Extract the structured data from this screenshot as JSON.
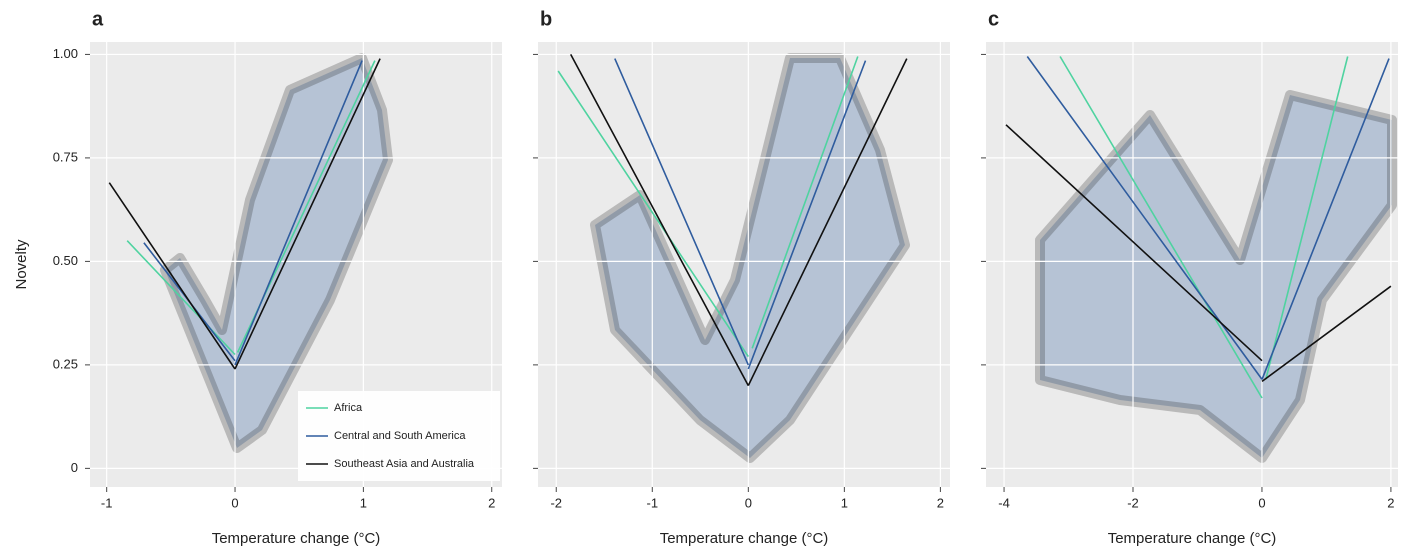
{
  "chart_data": [
    {
      "type": "line",
      "title": "a",
      "xlabel": "Temperature change (°C)",
      "ylabel": "Novelty",
      "xlim": [
        -1.13,
        2.08
      ],
      "ylim": [
        -0.045,
        1.03
      ],
      "xticks": [
        -1,
        0,
        1,
        2
      ],
      "yticks": [
        0,
        0.25,
        {
          "value": 0.5,
          "label": "0.50"
        },
        0.75,
        {
          "value": 1,
          "label": "1.00"
        }
      ],
      "ytick_labels": true,
      "grid": true,
      "legend": "lower right",
      "series": [
        {
          "name": "Africa",
          "color": "#4fd3a0",
          "x": [
            -0.84,
            0,
            null,
            0.02,
            1.09
          ],
          "values": [
            0.55,
            0.275,
            null,
            0.28,
            0.985
          ]
        },
        {
          "name": "Central and South America",
          "color": "#2f5c9e",
          "x": [
            -0.71,
            0,
            null,
            0,
            0.99
          ],
          "values": [
            0.545,
            0.26,
            null,
            0.25,
            0.985
          ]
        },
        {
          "name": "Southeast Asia and Australia",
          "color": "#111111",
          "x": [
            -0.98,
            0,
            null,
            0,
            1.13
          ],
          "values": [
            0.69,
            0.24,
            null,
            0.24,
            0.99
          ]
        }
      ]
    },
    {
      "type": "line",
      "title": "b",
      "xlabel": "Temperature change (°C)",
      "xlim": [
        -2.19,
        2.1
      ],
      "ylim": [
        -0.045,
        1.03
      ],
      "xticks": [
        -2,
        -1,
        0,
        1,
        2
      ],
      "yticks": [
        0,
        0.25,
        0.5,
        0.75,
        1
      ],
      "ytick_labels": false,
      "grid": true,
      "series": [
        {
          "color": "#4fd3a0",
          "x": [
            -1.98,
            0,
            null,
            0.04,
            1.14
          ],
          "values": [
            0.96,
            0.27,
            null,
            0.29,
            0.995
          ]
        },
        {
          "color": "#2f5c9e",
          "x": [
            -1.39,
            0,
            null,
            0,
            1.22
          ],
          "values": [
            0.99,
            0.25,
            null,
            0.24,
            0.985
          ]
        },
        {
          "color": "#111111",
          "x": [
            -1.85,
            0,
            null,
            0,
            1.65
          ],
          "values": [
            1.0,
            0.2,
            null,
            0.2,
            0.99
          ]
        }
      ]
    },
    {
      "type": "line",
      "title": "c",
      "xlabel": "Temperature change (°C)",
      "xlim": [
        -4.28,
        2.11
      ],
      "ylim": [
        -0.045,
        1.03
      ],
      "xticks": [
        -4,
        -2,
        0,
        2
      ],
      "yticks": [
        0,
        0.25,
        0.5,
        0.75,
        1
      ],
      "ytick_labels": false,
      "grid": true,
      "series": [
        {
          "color": "#4fd3a0",
          "x": [
            -3.13,
            0,
            null,
            0.06,
            1.33
          ],
          "values": [
            0.995,
            0.17,
            null,
            0.215,
            0.995
          ]
        },
        {
          "color": "#2f5c9e",
          "x": [
            -3.64,
            0,
            null,
            0,
            1.97
          ],
          "values": [
            0.995,
            0.215,
            null,
            0.215,
            0.99
          ]
        },
        {
          "color": "#111111",
          "x": [
            -3.97,
            0,
            null,
            0,
            2.0
          ],
          "values": [
            0.83,
            0.26,
            null,
            0.21,
            0.44
          ]
        }
      ]
    }
  ]
}
